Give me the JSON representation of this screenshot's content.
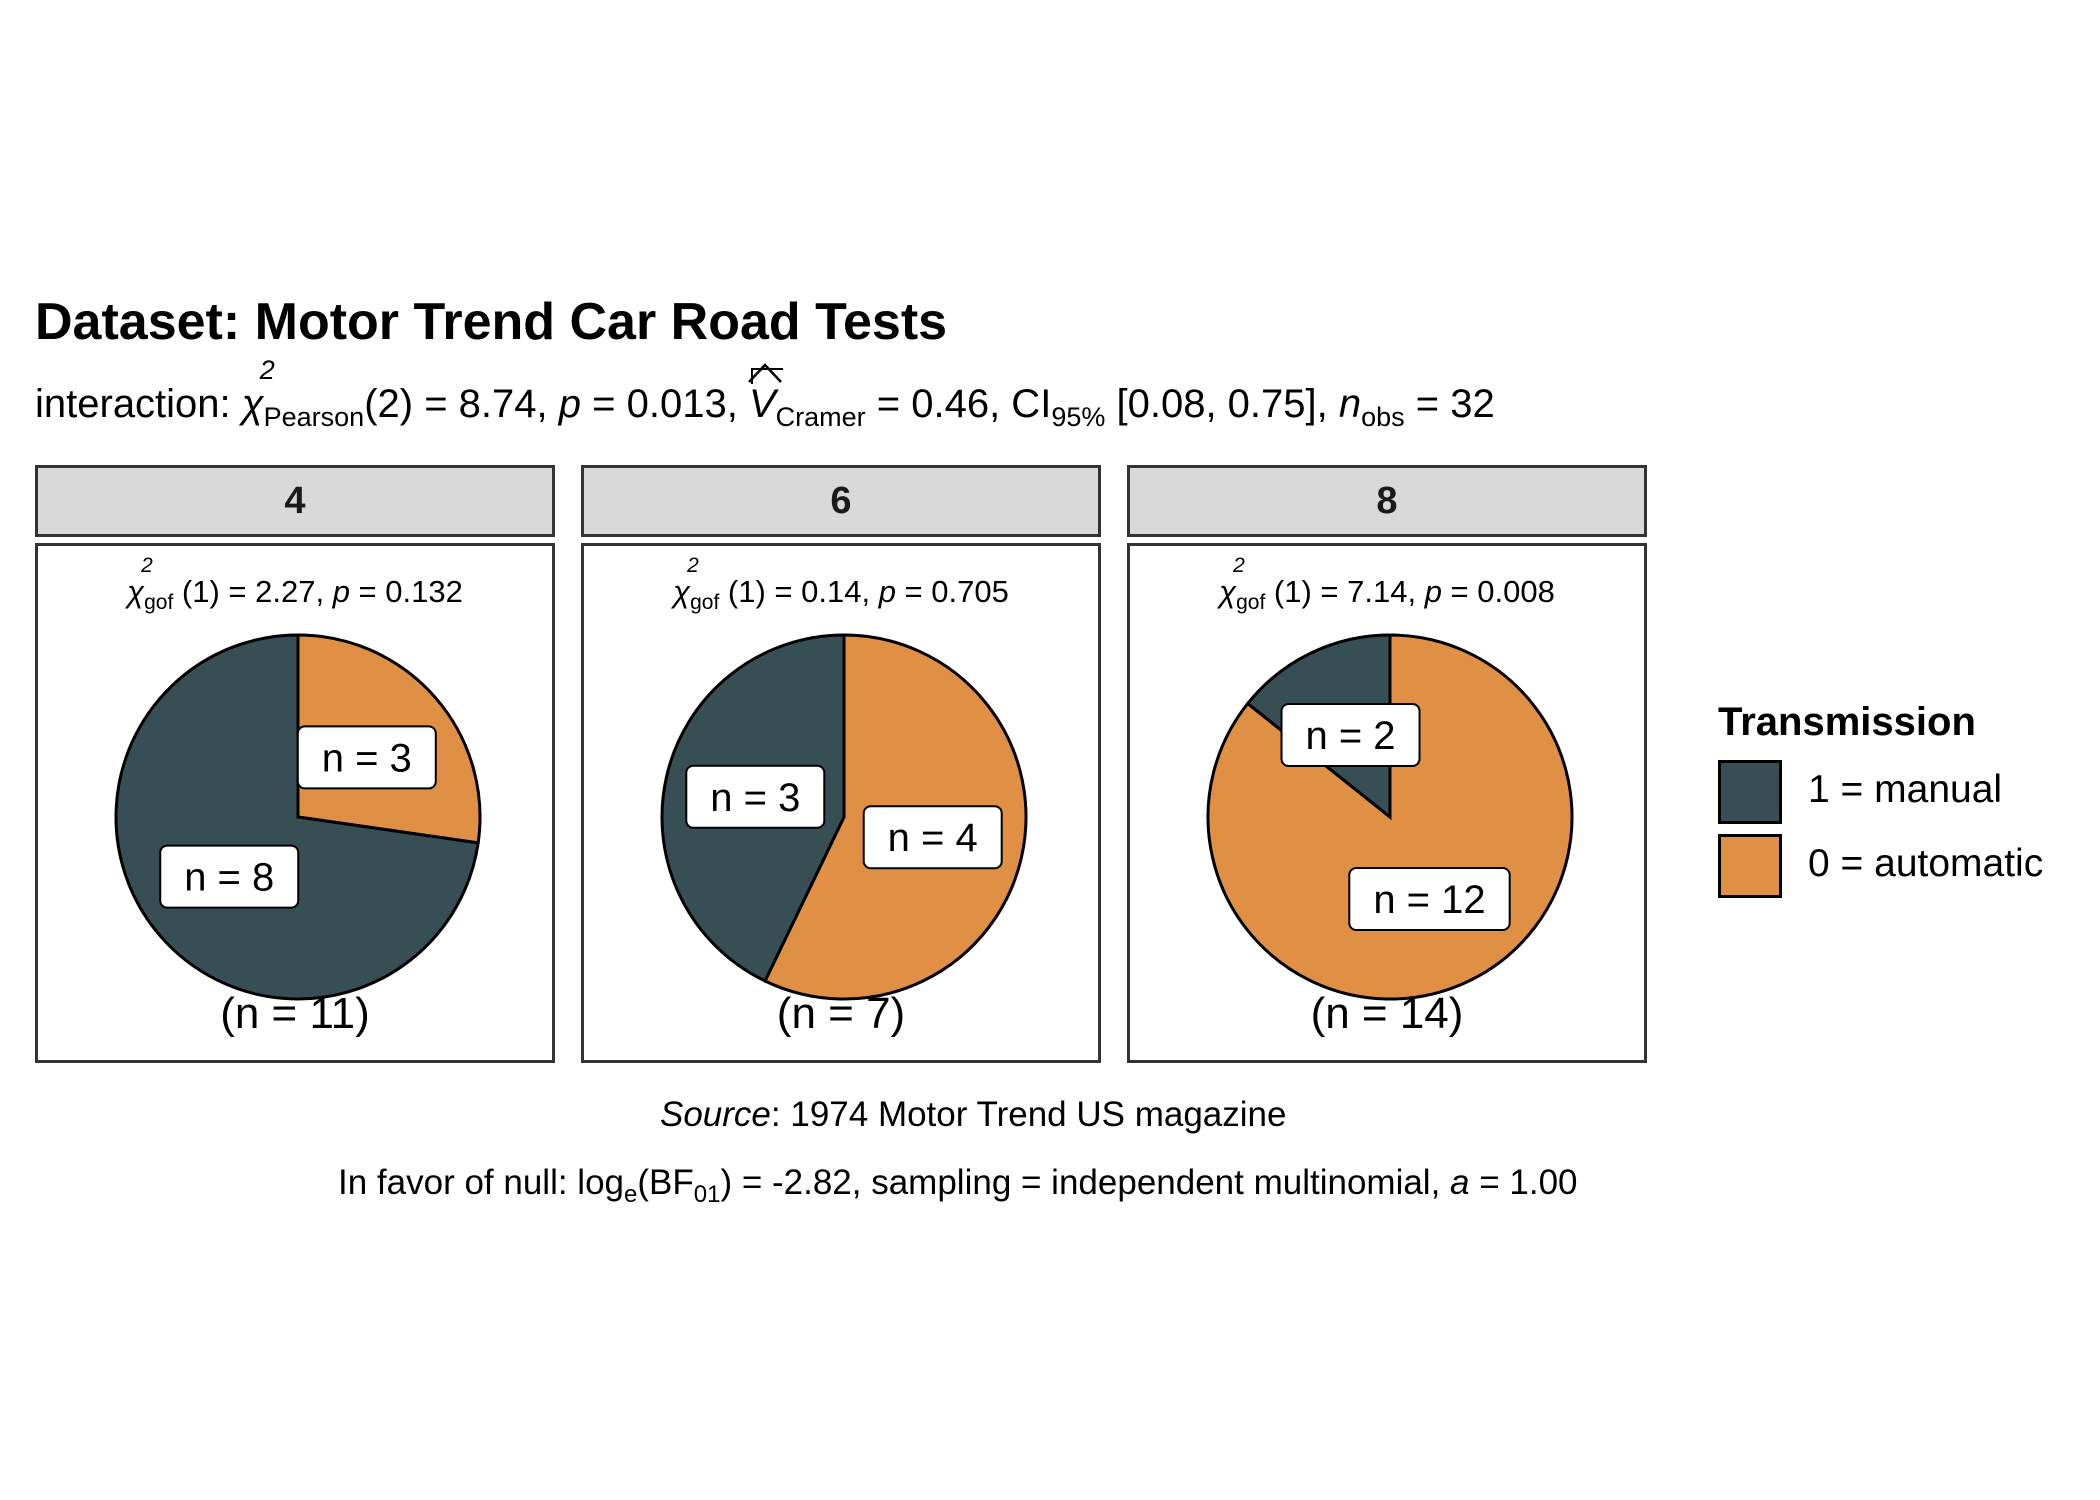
{
  "title": "Dataset: Motor Trend Car Road Tests",
  "subtitle": {
    "prefix": "interaction: ",
    "chi": "χ",
    "chi_sup": "2",
    "chi_sub": "Pearson",
    "df": "(2) = 8.74, ",
    "p_label": "p",
    "p_value": " = 0.013, ",
    "v": "V",
    "v_sub": "Cramer",
    "v_value": " = 0.46, CI",
    "ci_sub": "95%",
    "ci_value": " [0.08, 0.75], ",
    "n_label": "n",
    "n_sub": "obs",
    "n_value": " = 32"
  },
  "colors": {
    "manual": "#384E55",
    "automatic": "#DF9045"
  },
  "chart_data": {
    "type": "pie",
    "facets": [
      {
        "label": "4",
        "stat": {
          "chi": "χ",
          "sup": "2",
          "sub": "gof",
          "text": " (1) = 2.27,  ",
          "p": "p",
          "p_value": " = 0.132"
        },
        "total_label": "(n = 11)",
        "slices": [
          {
            "category": "0 = automatic",
            "value": 3,
            "label": "n = 3"
          },
          {
            "category": "1 = manual",
            "value": 8,
            "label": "n = 8"
          }
        ]
      },
      {
        "label": "6",
        "stat": {
          "chi": "χ",
          "sup": "2",
          "sub": "gof",
          "text": " (1) = 0.14,  ",
          "p": "p",
          "p_value": " = 0.705"
        },
        "total_label": "(n = 7)",
        "slices": [
          {
            "category": "0 = automatic",
            "value": 4,
            "label": "n = 4"
          },
          {
            "category": "1 = manual",
            "value": 3,
            "label": "n = 3"
          }
        ]
      },
      {
        "label": "8",
        "stat": {
          "chi": "χ",
          "sup": "2",
          "sub": "gof",
          "text": " (1) = 7.14,  ",
          "p": "p",
          "p_value": " = 0.008"
        },
        "total_label": "(n = 14)",
        "slices": [
          {
            "category": "0 = automatic",
            "value": 12,
            "label": "n = 12"
          },
          {
            "category": "1 = manual",
            "value": 2,
            "label": "n = 2"
          }
        ]
      }
    ],
    "legend": {
      "title": "Transmission",
      "position": "right",
      "items": [
        {
          "label": "1 = manual",
          "color": "#384E55"
        },
        {
          "label": "0 = automatic",
          "color": "#DF9045"
        }
      ]
    }
  },
  "caption": {
    "source_label": "Source",
    "source_text": ": 1974 Motor Trend US magazine",
    "bf_prefix": "In favor of null: log",
    "bf_e": "e",
    "bf_mid": "(BF",
    "bf_01": "01",
    "bf_rest": ") = -2.82, sampling = independent multinomial, ",
    "bf_a": "a",
    "bf_end": " = 1.00"
  }
}
